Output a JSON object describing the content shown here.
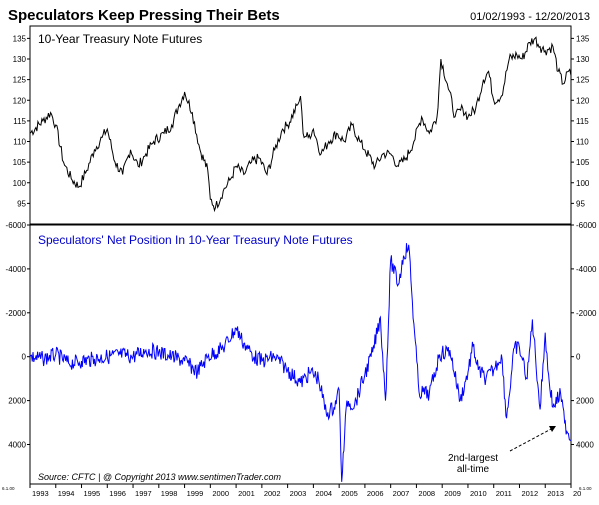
{
  "header": {
    "title": "Speculators Keep Pressing Their Bets",
    "date_range": "01/02/1993 - 12/20/2013"
  },
  "footer": {
    "source": "Source:  CFTC   |   @ Copyright 2013   www.sentimenTrader.com"
  },
  "annotation": {
    "line1": "2nd-largest",
    "line2": "all-time"
  },
  "colors": {
    "price_line": "#000000",
    "position_line": "#0000ff",
    "axis": "#000000"
  },
  "chart_data": [
    {
      "type": "line",
      "title": "10-Year Treasury Note Futures",
      "ylim": [
        90,
        138
      ],
      "yticks": [
        95,
        100,
        105,
        110,
        115,
        120,
        125,
        130,
        135
      ],
      "y_inverted": false,
      "grid": false,
      "series": [
        {
          "color": "#000000",
          "points": [
            [
              1993.0,
              112
            ],
            [
              1993.5,
              115
            ],
            [
              1993.8,
              117
            ],
            [
              1994.0,
              114
            ],
            [
              1994.3,
              105
            ],
            [
              1994.6,
              101
            ],
            [
              1994.9,
              99
            ],
            [
              1995.2,
              103
            ],
            [
              1995.5,
              108
            ],
            [
              1995.8,
              111
            ],
            [
              1996.0,
              113
            ],
            [
              1996.3,
              105
            ],
            [
              1996.6,
              102
            ],
            [
              1996.9,
              108
            ],
            [
              1997.2,
              104
            ],
            [
              1997.5,
              107
            ],
            [
              1997.8,
              110
            ],
            [
              1998.2,
              112
            ],
            [
              1998.5,
              114
            ],
            [
              1998.8,
              119
            ],
            [
              1999.0,
              122
            ],
            [
              1999.3,
              117
            ],
            [
              1999.6,
              108
            ],
            [
              1999.9,
              103
            ],
            [
              2000.0,
              96
            ],
            [
              2000.2,
              94
            ],
            [
              2000.5,
              98
            ],
            [
              2000.8,
              101
            ],
            [
              2001.0,
              104
            ],
            [
              2001.3,
              102
            ],
            [
              2001.6,
              105
            ],
            [
              2001.9,
              106
            ],
            [
              2002.2,
              102
            ],
            [
              2002.5,
              108
            ],
            [
              2002.8,
              113
            ],
            [
              2003.0,
              114
            ],
            [
              2003.4,
              119
            ],
            [
              2003.5,
              121
            ],
            [
              2003.6,
              112
            ],
            [
              2003.8,
              111
            ],
            [
              2004.0,
              113
            ],
            [
              2004.3,
              107
            ],
            [
              2004.6,
              110
            ],
            [
              2004.9,
              112
            ],
            [
              2005.2,
              110
            ],
            [
              2005.5,
              114
            ],
            [
              2005.8,
              110
            ],
            [
              2006.0,
              108
            ],
            [
              2006.4,
              104
            ],
            [
              2006.7,
              107
            ],
            [
              2007.0,
              107
            ],
            [
              2007.3,
              104
            ],
            [
              2007.6,
              106
            ],
            [
              2007.9,
              110
            ],
            [
              2008.2,
              116
            ],
            [
              2008.5,
              112
            ],
            [
              2008.8,
              116
            ],
            [
              2008.95,
              130
            ],
            [
              2009.2,
              124
            ],
            [
              2009.5,
              116
            ],
            [
              2009.8,
              118
            ],
            [
              2010.0,
              116
            ],
            [
              2010.3,
              118
            ],
            [
              2010.6,
              125
            ],
            [
              2010.8,
              127
            ],
            [
              2011.0,
              120
            ],
            [
              2011.3,
              121
            ],
            [
              2011.6,
              130
            ],
            [
              2011.9,
              131
            ],
            [
              2012.1,
              130
            ],
            [
              2012.4,
              134
            ],
            [
              2012.6,
              135
            ],
            [
              2012.8,
              133
            ],
            [
              2013.0,
              132
            ],
            [
              2013.3,
              133
            ],
            [
              2013.5,
              127
            ],
            [
              2013.7,
              124
            ],
            [
              2013.9,
              127
            ],
            [
              2014.0,
              126
            ]
          ]
        }
      ]
    },
    {
      "type": "line",
      "title": "Speculators' Net Position In 10-Year Treasury Note Futures",
      "ylim": [
        -6000,
        5800
      ],
      "yticks": [
        -6000,
        -4000,
        -2000,
        0,
        2000,
        4000
      ],
      "y_inverted": true,
      "grid": false,
      "series": [
        {
          "color": "#0000ff",
          "points": [
            [
              1993.0,
              0
            ],
            [
              1993.5,
              100
            ],
            [
              1994.0,
              -100
            ],
            [
              1994.5,
              300
            ],
            [
              1995.0,
              200
            ],
            [
              1995.5,
              100
            ],
            [
              1996.0,
              0
            ],
            [
              1996.5,
              -100
            ],
            [
              1997.0,
              0
            ],
            [
              1997.5,
              -300
            ],
            [
              1998.0,
              -200
            ],
            [
              1998.5,
              0
            ],
            [
              1999.0,
              200
            ],
            [
              1999.5,
              700
            ],
            [
              1999.9,
              0
            ],
            [
              2000.5,
              -400
            ],
            [
              2001.0,
              -1300
            ],
            [
              2001.3,
              -600
            ],
            [
              2001.7,
              0
            ],
            [
              2002.0,
              200
            ],
            [
              2002.5,
              0
            ],
            [
              2003.0,
              600
            ],
            [
              2003.5,
              1200
            ],
            [
              2003.9,
              700
            ],
            [
              2004.2,
              1000
            ],
            [
              2004.5,
              2600
            ],
            [
              2004.8,
              2300
            ],
            [
              2005.0,
              1500
            ],
            [
              2005.1,
              5700
            ],
            [
              2005.3,
              2000
            ],
            [
              2005.6,
              2200
            ],
            [
              2006.0,
              800
            ],
            [
              2006.3,
              -200
            ],
            [
              2006.6,
              -1800
            ],
            [
              2006.8,
              2000
            ],
            [
              2007.0,
              -4400
            ],
            [
              2007.3,
              -3300
            ],
            [
              2007.5,
              -4600
            ],
            [
              2007.7,
              -5100
            ],
            [
              2007.9,
              -1500
            ],
            [
              2008.1,
              1600
            ],
            [
              2008.5,
              1700
            ],
            [
              2008.9,
              -100
            ],
            [
              2009.3,
              -300
            ],
            [
              2009.7,
              2000
            ],
            [
              2010.0,
              700
            ],
            [
              2010.2,
              -500
            ],
            [
              2010.4,
              600
            ],
            [
              2010.7,
              1000
            ],
            [
              2011.0,
              600
            ],
            [
              2011.3,
              -100
            ],
            [
              2011.5,
              2800
            ],
            [
              2011.8,
              -400
            ],
            [
              2012.0,
              -400
            ],
            [
              2012.3,
              1000
            ],
            [
              2012.5,
              -1700
            ],
            [
              2012.8,
              2400
            ],
            [
              2013.0,
              -1100
            ],
            [
              2013.1,
              600
            ],
            [
              2013.3,
              2300
            ],
            [
              2013.6,
              1700
            ],
            [
              2013.75,
              3000
            ],
            [
              2013.9,
              3500
            ],
            [
              2014.0,
              3800
            ]
          ]
        }
      ]
    }
  ],
  "x_axis": {
    "tick_labels": [
      "1993",
      "1994",
      "1995",
      "1996",
      "1997",
      "1998",
      "1999",
      "2000",
      "2001",
      "2002",
      "2003",
      "2004",
      "2005",
      "2006",
      "2007",
      "2008",
      "2009",
      "2010",
      "2011",
      "2012",
      "2013",
      "20"
    ],
    "stub_left": "6.1.00",
    "stub_right": "6.1.00"
  }
}
